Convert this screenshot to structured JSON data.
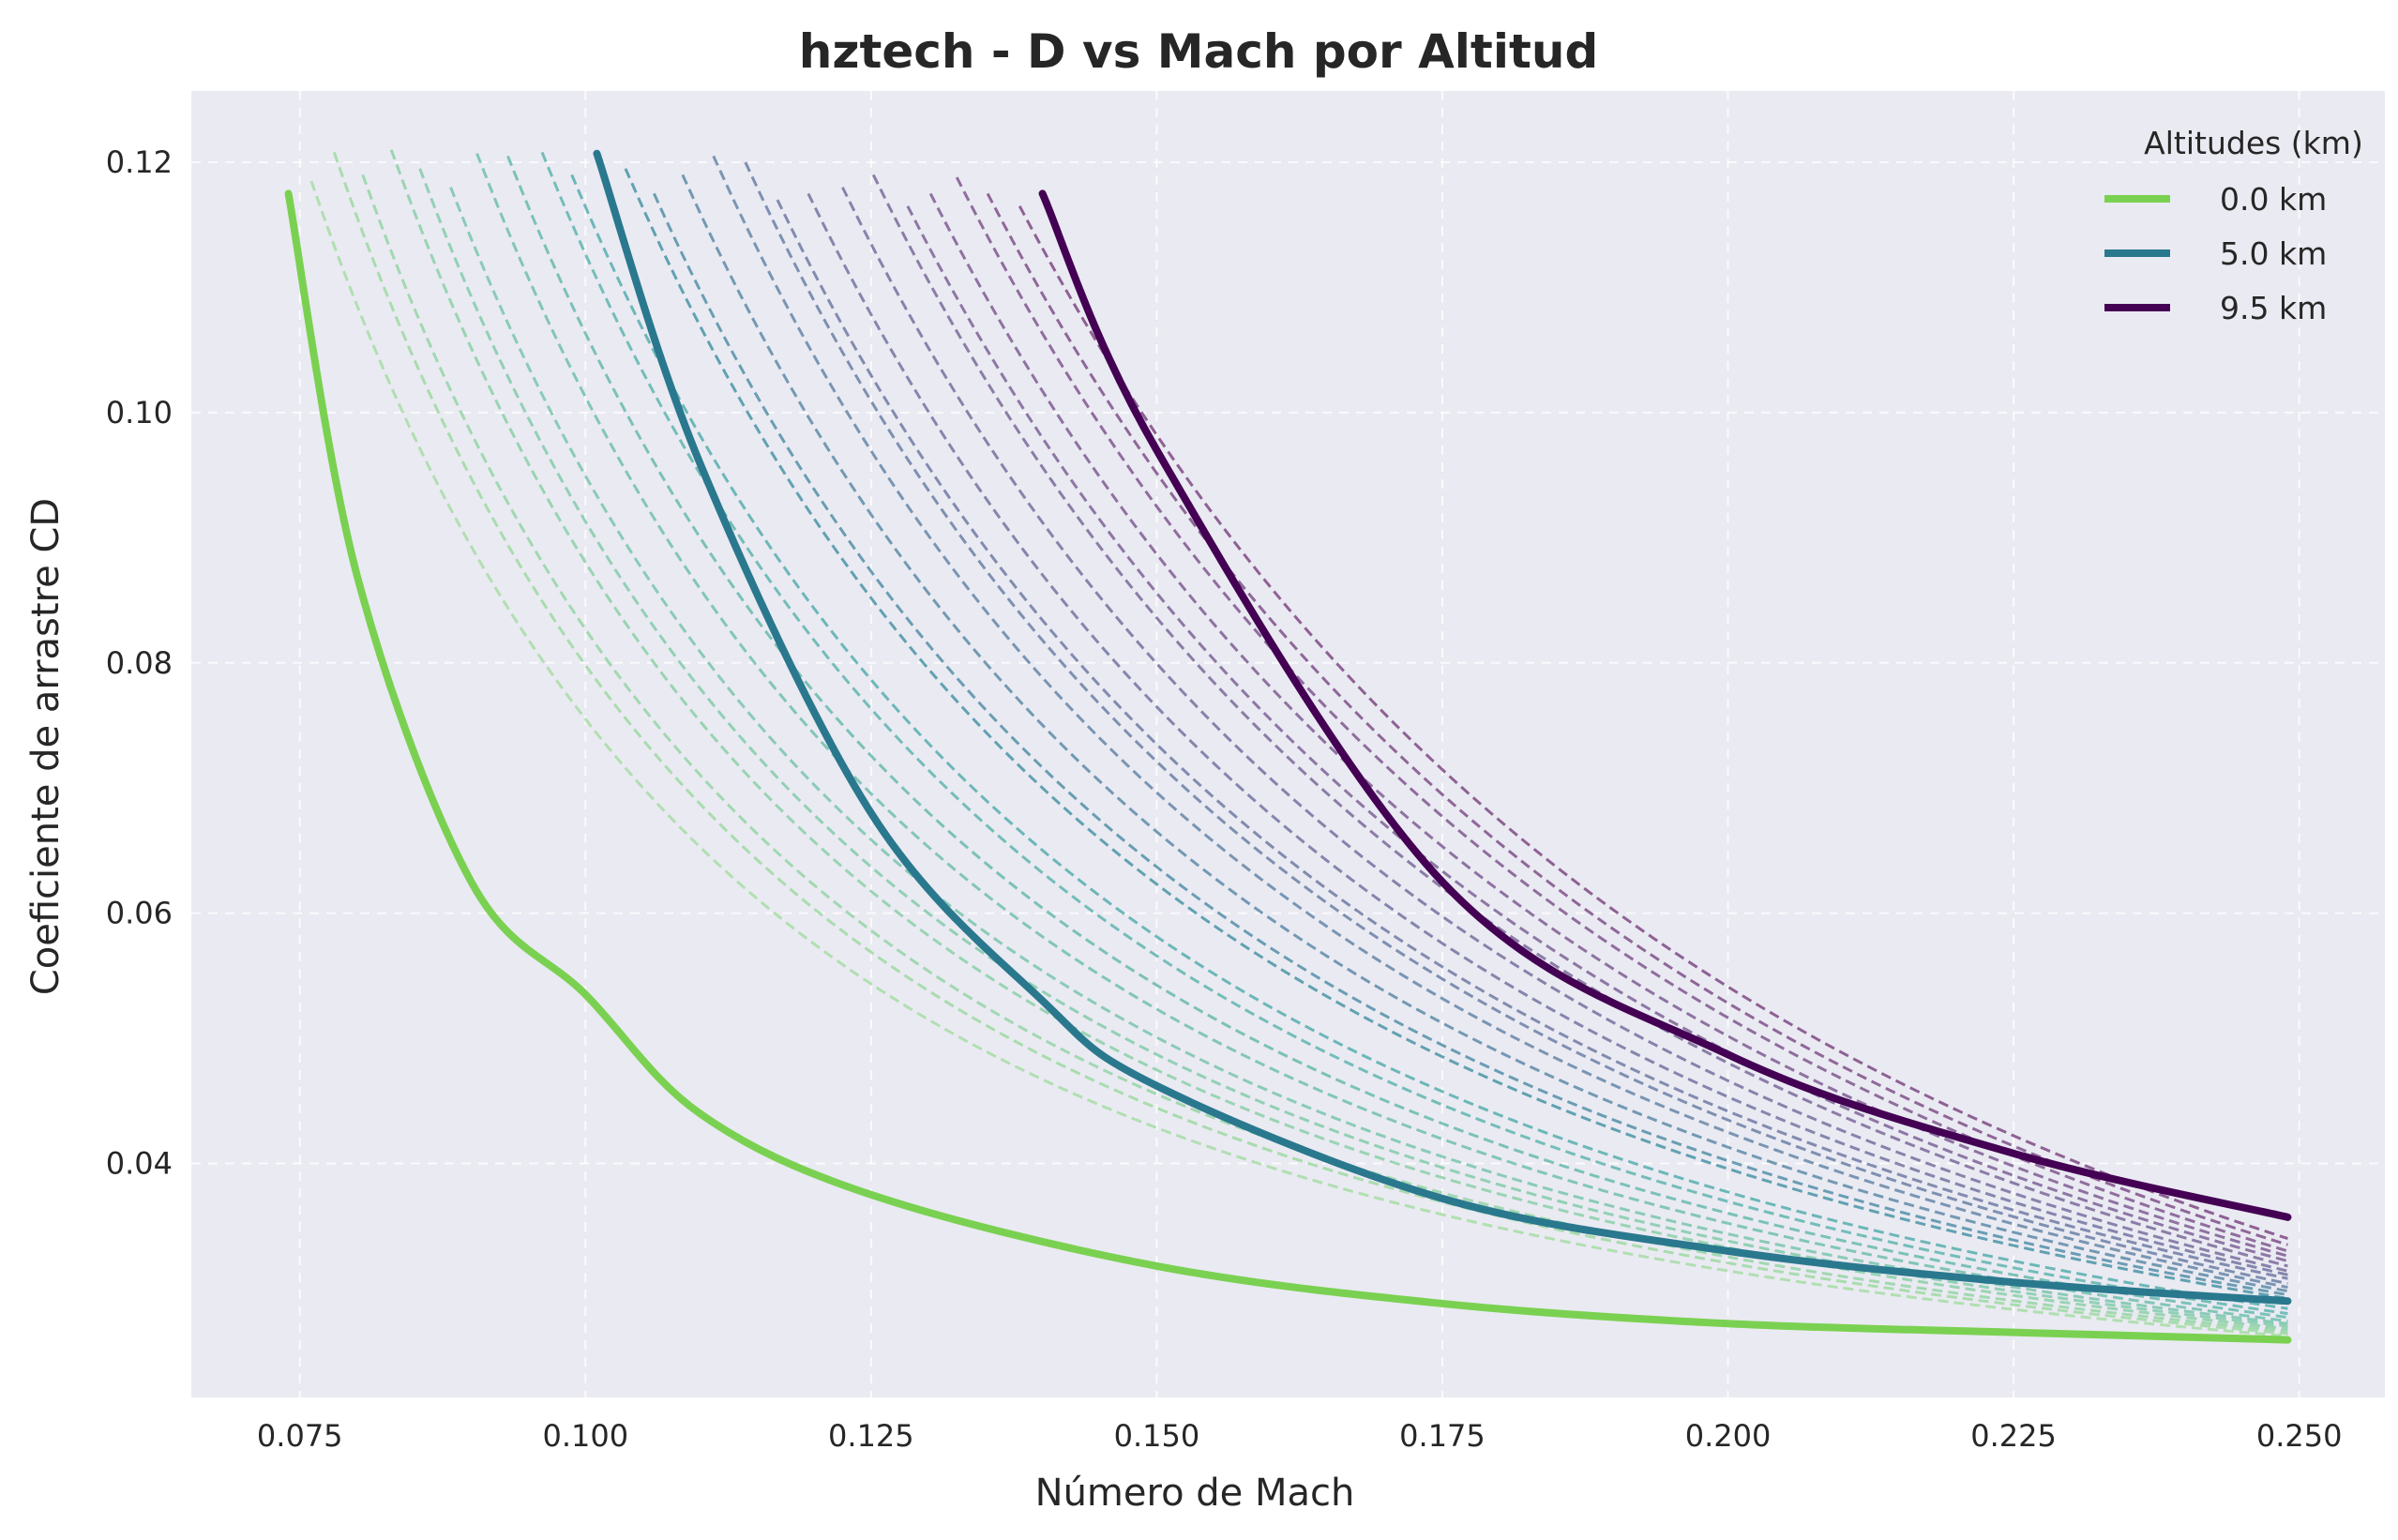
{
  "chart_data": {
    "type": "line",
    "title": "hztech - D vs Mach por Altitud",
    "xlabel": "Número de Mach",
    "ylabel": "Coeficiente de arrastre CD",
    "xlim": [
      0.0655,
      0.2575
    ],
    "ylim": [
      0.0213,
      0.1257
    ],
    "xticks": [
      0.075,
      0.1,
      0.125,
      0.15,
      0.175,
      0.2,
      0.225,
      0.25
    ],
    "xtick_labels": [
      "0.075",
      "0.100",
      "0.125",
      "0.150",
      "0.175",
      "0.200",
      "0.225",
      "0.250"
    ],
    "yticks": [
      0.04,
      0.06,
      0.08,
      0.1,
      0.12
    ],
    "ytick_labels": [
      "0.04",
      "0.06",
      "0.08",
      "0.10",
      "0.12"
    ],
    "grid": true,
    "legend": {
      "title": "Altitudes (km)",
      "placement": "top-right"
    },
    "series": [
      {
        "name": "0.0 km",
        "color": "#7ad151",
        "highlight": true,
        "x": [
          0.074,
          0.08,
          0.09,
          0.1,
          0.11,
          0.125,
          0.15,
          0.175,
          0.2,
          0.225,
          0.249
        ],
        "y": [
          0.1175,
          0.087,
          0.0625,
          0.0535,
          0.044,
          0.0375,
          0.0318,
          0.0288,
          0.0272,
          0.0265,
          0.0259
        ]
      },
      {
        "name": "5.0 km",
        "color": "#2a788e",
        "highlight": true,
        "x": [
          0.101,
          0.11,
          0.125,
          0.14,
          0.15,
          0.175,
          0.2,
          0.225,
          0.249
        ],
        "y": [
          0.1207,
          0.096,
          0.068,
          0.053,
          0.0462,
          0.0372,
          0.033,
          0.0305,
          0.029
        ]
      },
      {
        "name": "9.5 km",
        "color": "#440154",
        "highlight": true,
        "x": [
          0.14,
          0.15,
          0.175,
          0.2,
          0.225,
          0.249
        ],
        "y": [
          0.1175,
          0.097,
          0.0625,
          0.0487,
          0.0408,
          0.0357
        ]
      },
      {
        "color": "#a3dca0",
        "x": [
          0.076,
          0.249
        ],
        "y": [
          0.1185,
          0.0262
        ],
        "alpha": 0.8
      },
      {
        "color": "#98d89c",
        "x": [
          0.078,
          0.249
        ],
        "y": [
          0.1208,
          0.0264
        ],
        "alpha": 0.8
      },
      {
        "color": "#8ed3a0",
        "x": [
          0.0805,
          0.249
        ],
        "y": [
          0.119,
          0.0266
        ],
        "alpha": 0.8
      },
      {
        "color": "#85cea3",
        "x": [
          0.083,
          0.249
        ],
        "y": [
          0.121,
          0.0268
        ],
        "alpha": 0.8
      },
      {
        "color": "#7cc9a5",
        "x": [
          0.0855,
          0.249
        ],
        "y": [
          0.1195,
          0.027
        ],
        "alpha": 0.8
      },
      {
        "color": "#72c3a7",
        "x": [
          0.0882,
          0.249
        ],
        "y": [
          0.118,
          0.0272
        ],
        "alpha": 0.8
      },
      {
        "color": "#68bda8",
        "x": [
          0.0905,
          0.249
        ],
        "y": [
          0.1207,
          0.0274
        ],
        "alpha": 0.8
      },
      {
        "color": "#5fb7a9",
        "x": [
          0.0932,
          0.249
        ],
        "y": [
          0.1205,
          0.0277
        ],
        "alpha": 0.8
      },
      {
        "color": "#56b1aa",
        "x": [
          0.0962,
          0.249
        ],
        "y": [
          0.1208,
          0.028
        ],
        "alpha": 0.8
      },
      {
        "color": "#4caaa9",
        "x": [
          0.0988,
          0.249
        ],
        "y": [
          0.119,
          0.0284
        ],
        "alpha": 0.8
      },
      {
        "color": "#3f8fa0",
        "x": [
          0.1035,
          0.249
        ],
        "y": [
          0.1195,
          0.0292
        ],
        "alpha": 0.8
      },
      {
        "color": "#4a8aa2",
        "x": [
          0.106,
          0.249
        ],
        "y": [
          0.1175,
          0.0295
        ],
        "alpha": 0.8
      },
      {
        "color": "#5584a3",
        "x": [
          0.1085,
          0.249
        ],
        "y": [
          0.119,
          0.0298
        ],
        "alpha": 0.8
      },
      {
        "color": "#5d7fa2",
        "x": [
          0.1112,
          0.249
        ],
        "y": [
          0.1205,
          0.0301
        ],
        "alpha": 0.8
      },
      {
        "color": "#6379a0",
        "x": [
          0.114,
          0.249
        ],
        "y": [
          0.12,
          0.0304
        ],
        "alpha": 0.8
      },
      {
        "color": "#68739e",
        "x": [
          0.1168,
          0.249
        ],
        "y": [
          0.117,
          0.0308
        ],
        "alpha": 0.8
      },
      {
        "color": "#6c6d9b",
        "x": [
          0.1195,
          0.249
        ],
        "y": [
          0.1175,
          0.0311
        ],
        "alpha": 0.8
      },
      {
        "color": "#706798",
        "x": [
          0.1225,
          0.249
        ],
        "y": [
          0.118,
          0.0314
        ],
        "alpha": 0.8
      },
      {
        "color": "#736194",
        "x": [
          0.1252,
          0.249
        ],
        "y": [
          0.119,
          0.0318
        ],
        "alpha": 0.8
      },
      {
        "color": "#755a90",
        "x": [
          0.1282,
          0.249
        ],
        "y": [
          0.1165,
          0.0322
        ],
        "alpha": 0.8
      },
      {
        "color": "#77548c",
        "x": [
          0.1302,
          0.249
        ],
        "y": [
          0.1175,
          0.0326
        ],
        "alpha": 0.8
      },
      {
        "color": "#784d87",
        "x": [
          0.1325,
          0.249
        ],
        "y": [
          0.1188,
          0.033
        ],
        "alpha": 0.8
      },
      {
        "color": "#784682",
        "x": [
          0.1352,
          0.249
        ],
        "y": [
          0.1175,
          0.0335
        ],
        "alpha": 0.8
      },
      {
        "color": "#773e7c",
        "x": [
          0.138,
          0.249
        ],
        "y": [
          0.1165,
          0.034
        ],
        "alpha": 0.8
      }
    ]
  }
}
